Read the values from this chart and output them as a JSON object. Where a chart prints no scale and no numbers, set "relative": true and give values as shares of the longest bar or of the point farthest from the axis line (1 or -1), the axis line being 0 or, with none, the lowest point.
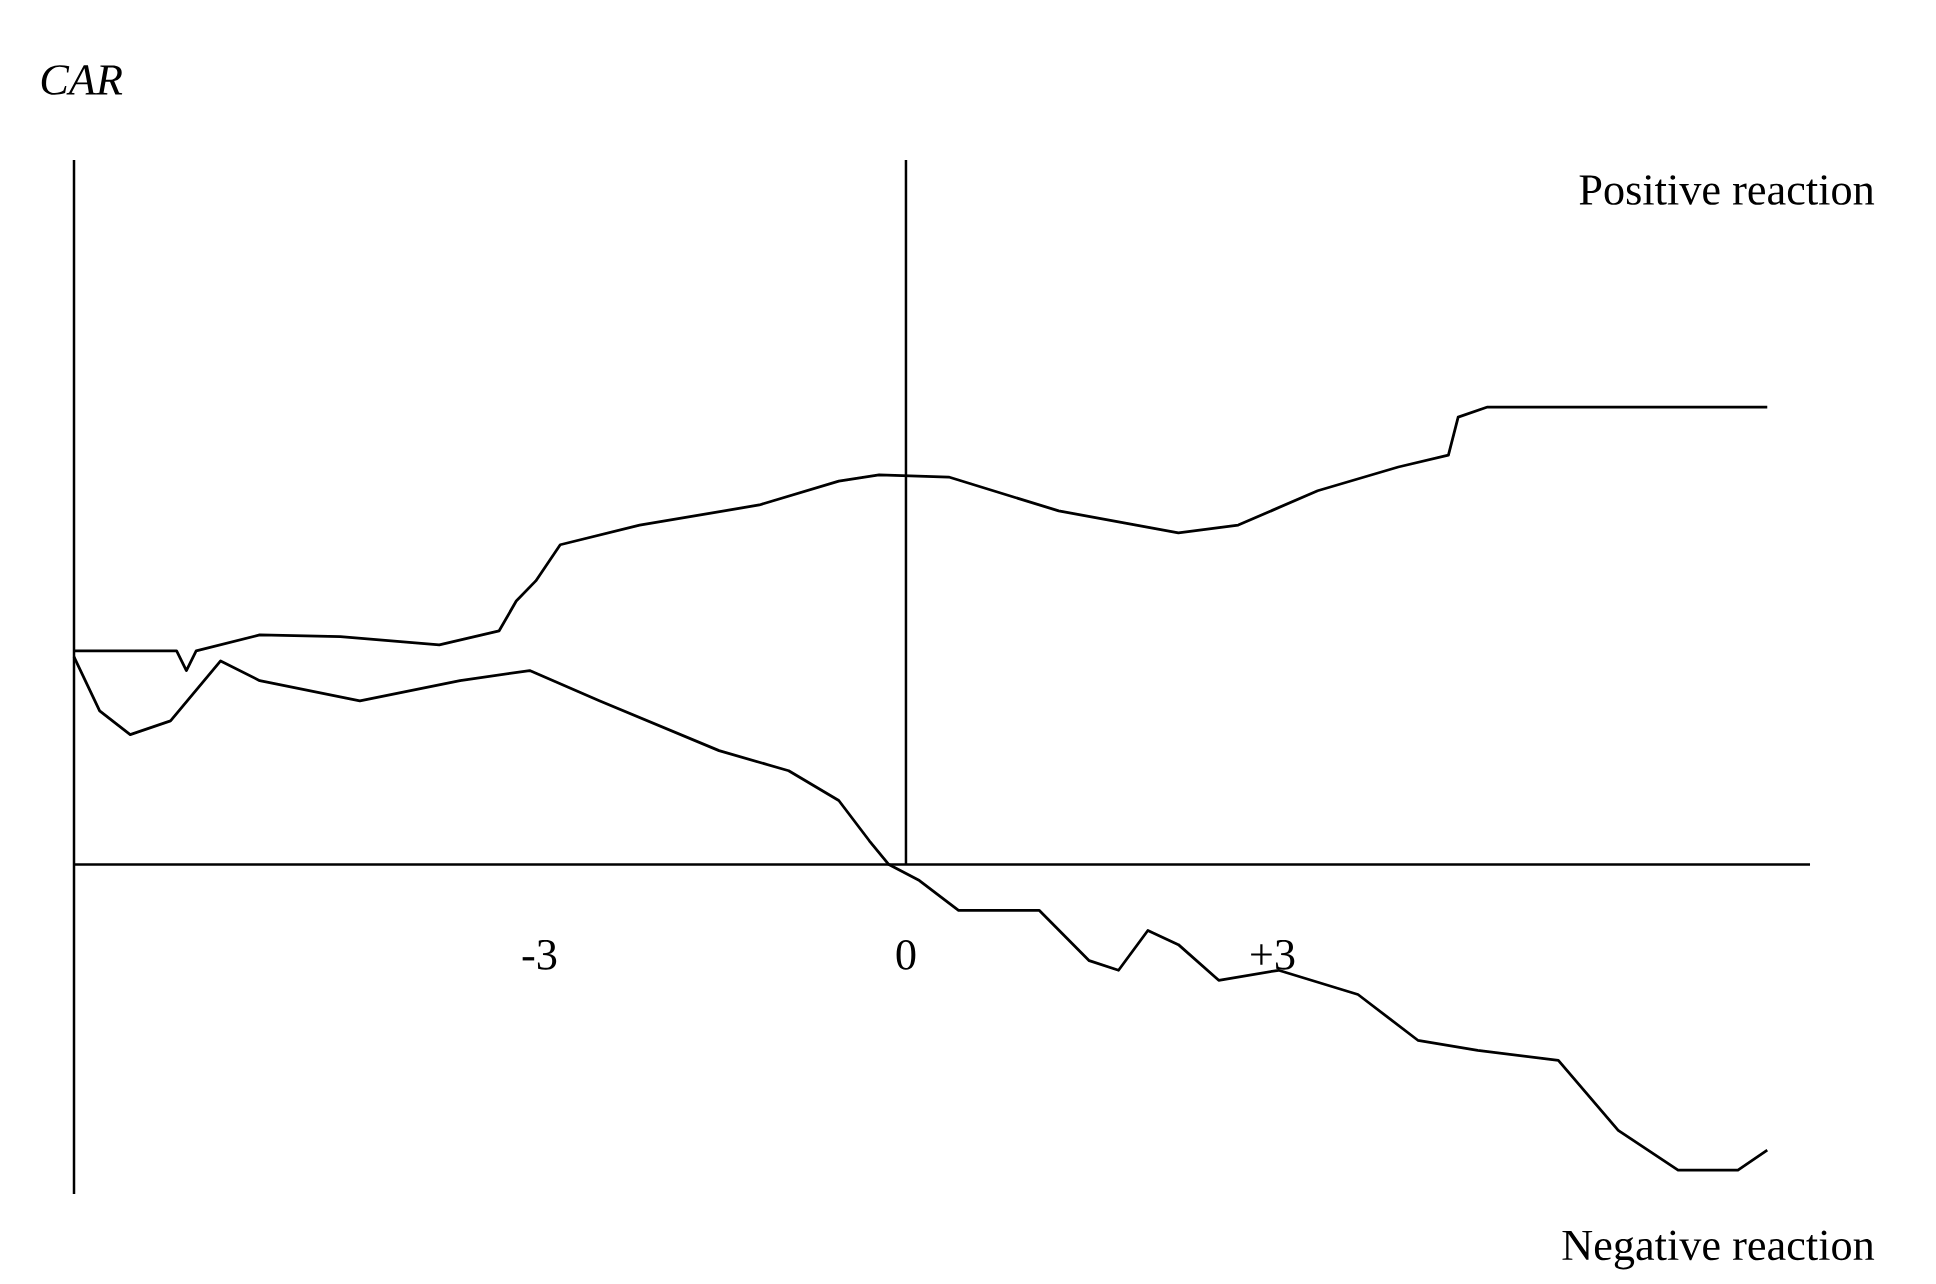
{
  "chart_data": {
    "type": "line",
    "relative": true,
    "annotations": [
      "CAR",
      "Positive reaction",
      "Negative reaction"
    ],
    "xlim": [
      -6.81,
      7.4
    ],
    "xticks": [
      -3,
      0,
      {
        "value": 3,
        "label": "+3"
      }
    ],
    "grid": false,
    "marker": "none",
    "line_style": "solid",
    "ref_lines": [
      {
        "axis": "x",
        "value": 0,
        "color": "#000000"
      }
    ],
    "series": [
      {
        "color": "#000000",
        "x": [
          -6.81,
          -5.97,
          -5.89,
          -5.81,
          -5.29,
          -4.63,
          -3.82,
          -3.33,
          -3.19,
          -3.03,
          -2.83,
          -2.18,
          -1.2,
          -0.55,
          -0.22,
          0.35,
          1.25,
          2.23,
          2.72,
          3.37,
          4.03,
          4.44,
          4.52,
          4.76,
          5.66,
          7.05
        ],
        "values": [
          0.467,
          0.467,
          0.424,
          0.467,
          0.502,
          0.498,
          0.48,
          0.511,
          0.576,
          0.62,
          0.699,
          0.742,
          0.786,
          0.838,
          0.852,
          0.847,
          0.773,
          0.725,
          0.742,
          0.817,
          0.869,
          0.895,
          0.978,
          1,
          1,
          1
        ]
      },
      {
        "color": "#000000",
        "x": [
          -6.81,
          -6.6,
          -6.35,
          -6.02,
          -5.61,
          -5.29,
          -4.47,
          -3.65,
          -3.08,
          -2.51,
          -1.53,
          -0.96,
          -0.55,
          -0.3,
          -0.14,
          0.11,
          0.43,
          1.09,
          1.5,
          1.74,
          1.98,
          2.23,
          2.56,
          3.05,
          3.7,
          4.19,
          4.68,
          5.34,
          5.83,
          6.32,
          6.81,
          7.05
        ],
        "values": [
          0.454,
          0.336,
          0.284,
          0.314,
          0.445,
          0.402,
          0.358,
          0.402,
          0.424,
          0.358,
          0.249,
          0.205,
          0.14,
          0.052,
          0,
          -0.035,
          -0.1,
          -0.1,
          -0.21,
          -0.231,
          -0.144,
          -0.175,
          -0.253,
          -0.231,
          -0.284,
          -0.384,
          -0.406,
          -0.428,
          -0.581,
          -0.668,
          -0.668,
          -0.624
        ]
      }
    ]
  }
}
